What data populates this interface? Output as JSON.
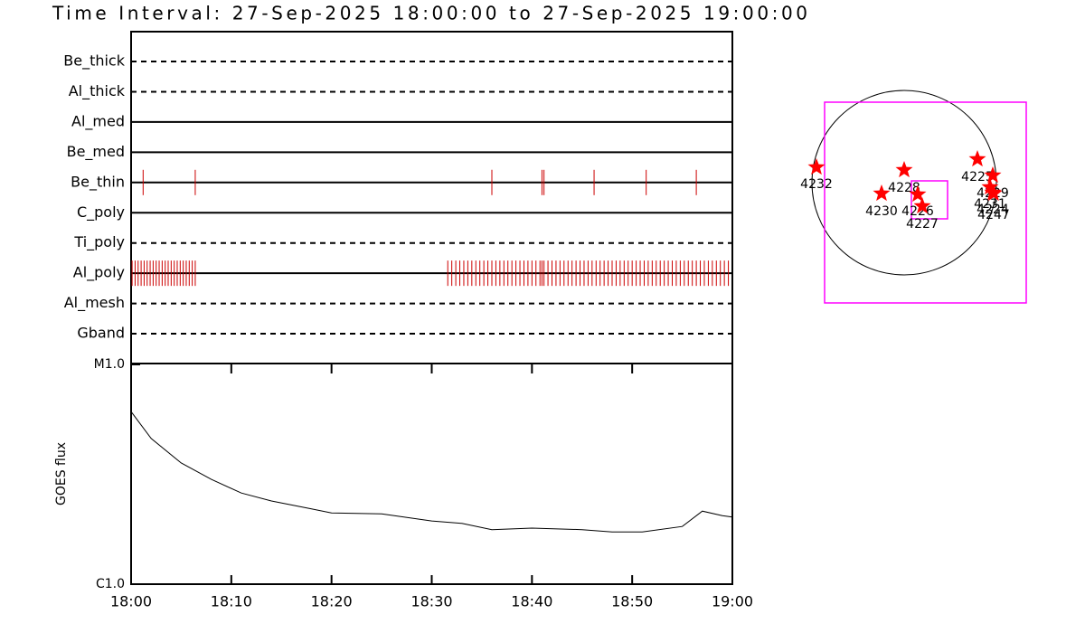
{
  "chart_data": [
    {
      "type": "timeline",
      "title": "Time Interval: 27-Sep-2025 18:00:00 to 27-Sep-2025 19:00:00",
      "categories": [
        "Be_thick",
        "Al_thick",
        "Al_med",
        "Be_med",
        "Be_thin",
        "C_poly",
        "Ti_poly",
        "Al_poly",
        "Al_mesh",
        "Gband"
      ],
      "line_styles": [
        "dashed",
        "dashed",
        "solid",
        "solid",
        "solid",
        "solid",
        "dashed",
        "solid",
        "dashed",
        "dashed"
      ],
      "color": "#cc0000",
      "xlim": [
        0,
        60
      ],
      "events": [
        {
          "name": "Be_thin",
          "x": [
            1.2,
            6.4,
            36.0,
            41.0,
            41.2,
            46.2,
            51.4,
            56.4
          ]
        },
        {
          "name": "Al_poly",
          "x": [
            0.1,
            0.4,
            0.7,
            1.0,
            1.3,
            1.6,
            1.9,
            2.2,
            2.5,
            2.8,
            3.1,
            3.4,
            3.7,
            4.0,
            4.3,
            4.6,
            4.9,
            5.2,
            5.5,
            5.8,
            6.1,
            6.4,
            31.6,
            32.0,
            32.4,
            32.8,
            33.2,
            33.6,
            34.0,
            34.4,
            34.8,
            35.2,
            35.6,
            36.0,
            36.4,
            36.8,
            37.2,
            37.6,
            38.0,
            38.4,
            38.8,
            39.2,
            39.6,
            40.0,
            40.4,
            40.8,
            41.0,
            41.2,
            41.6,
            42.0,
            42.4,
            42.8,
            43.2,
            43.6,
            44.0,
            44.4,
            44.8,
            45.2,
            45.6,
            46.0,
            46.4,
            46.8,
            47.2,
            47.6,
            48.0,
            48.4,
            48.8,
            49.2,
            49.6,
            50.0,
            50.4,
            50.8,
            51.2,
            51.6,
            52.0,
            52.4,
            52.8,
            53.2,
            53.6,
            54.0,
            54.4,
            54.8,
            55.2,
            55.6,
            56.0,
            56.4,
            56.8,
            57.2,
            57.6,
            58.0,
            58.4,
            58.8,
            59.2,
            59.6
          ]
        }
      ]
    },
    {
      "type": "line",
      "ylabel": "GOES flux",
      "x": [
        0,
        2,
        5,
        8,
        11,
        14,
        18,
        20,
        25,
        30,
        33,
        36,
        40,
        45,
        48,
        51,
        55,
        57,
        59,
        60
      ],
      "values": [
        6.1e-06,
        4.6e-06,
        3.56e-06,
        3e-06,
        2.6e-06,
        2.39e-06,
        2.2e-06,
        2.11e-06,
        2.09e-06,
        1.94e-06,
        1.89e-06,
        1.77e-06,
        1.8e-06,
        1.77e-06,
        1.73e-06,
        1.73e-06,
        1.83e-06,
        2.15e-06,
        2.05e-06,
        2.02e-06
      ],
      "color": "#000000",
      "log_y": true,
      "xlim": [
        0,
        60
      ],
      "xticks": [
        {
          "value": 0,
          "label": "18:00"
        },
        {
          "value": 10,
          "label": "18:10"
        },
        {
          "value": 20,
          "label": "18:20"
        },
        {
          "value": 30,
          "label": "18:30"
        },
        {
          "value": 40,
          "label": "18:40"
        },
        {
          "value": 50,
          "label": "18:50"
        },
        {
          "value": 60,
          "label": "19:00"
        }
      ],
      "ylim": [
        1e-06,
        1e-05
      ],
      "yticks": [
        {
          "value": 1e-06,
          "label": "C1.0"
        },
        {
          "value": 1e-05,
          "label": "M1.0"
        }
      ]
    },
    {
      "type": "map",
      "color": "#ff0000",
      "regions": [
        "4232",
        "4228",
        "4230",
        "4226",
        "4227",
        "4225",
        "4229",
        "4231",
        "4224",
        "4247"
      ]
    }
  ]
}
